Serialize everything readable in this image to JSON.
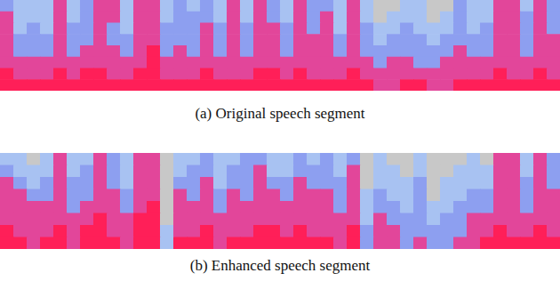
{
  "chart_data": [
    {
      "type": "heatmap",
      "title": "(a) Original speech segment",
      "tick_labels": false,
      "cells": [
        [
          2,
          1,
          1,
          1,
          3,
          1,
          2,
          3,
          3,
          1,
          3,
          3,
          1,
          2,
          1,
          2,
          1,
          3,
          1,
          3,
          2,
          1,
          3,
          2,
          2,
          1,
          3,
          1,
          0,
          0,
          1,
          1,
          0,
          0,
          2,
          1,
          1,
          3,
          3,
          1,
          3,
          2
        ],
        [
          3,
          1,
          1,
          1,
          3,
          1,
          2,
          3,
          3,
          1,
          3,
          3,
          1,
          2,
          2,
          2,
          1,
          3,
          1,
          3,
          2,
          1,
          3,
          2,
          3,
          1,
          3,
          1,
          0,
          1,
          1,
          1,
          0,
          1,
          2,
          1,
          1,
          3,
          3,
          2,
          3,
          2
        ],
        [
          3,
          1,
          2,
          1,
          3,
          2,
          2,
          3,
          2,
          1,
          3,
          3,
          2,
          2,
          2,
          3,
          2,
          3,
          2,
          3,
          3,
          2,
          3,
          2,
          3,
          1,
          3,
          2,
          1,
          1,
          2,
          1,
          1,
          1,
          2,
          1,
          2,
          3,
          3,
          2,
          3,
          2
        ],
        [
          3,
          2,
          2,
          2,
          3,
          2,
          2,
          3,
          2,
          2,
          3,
          3,
          2,
          2,
          2,
          3,
          2,
          3,
          2,
          3,
          3,
          2,
          3,
          3,
          3,
          2,
          3,
          2,
          1,
          2,
          2,
          2,
          1,
          2,
          2,
          2,
          2,
          3,
          3,
          2,
          3,
          3
        ],
        [
          3,
          2,
          2,
          2,
          3,
          2,
          3,
          3,
          3,
          2,
          3,
          4,
          2,
          3,
          2,
          3,
          2,
          3,
          2,
          3,
          3,
          2,
          3,
          3,
          3,
          2,
          3,
          2,
          2,
          2,
          2,
          2,
          2,
          2,
          3,
          2,
          2,
          3,
          3,
          2,
          3,
          3
        ],
        [
          3,
          3,
          3,
          3,
          3,
          3,
          3,
          3,
          3,
          3,
          3,
          4,
          3,
          3,
          3,
          3,
          3,
          3,
          3,
          3,
          3,
          3,
          3,
          3,
          3,
          3,
          3,
          3,
          2,
          3,
          3,
          2,
          2,
          3,
          3,
          3,
          3,
          3,
          3,
          3,
          3,
          3
        ],
        [
          4,
          3,
          3,
          3,
          4,
          3,
          4,
          4,
          3,
          3,
          4,
          4,
          3,
          3,
          3,
          4,
          3,
          3,
          3,
          4,
          4,
          3,
          4,
          3,
          3,
          3,
          4,
          3,
          3,
          3,
          3,
          3,
          3,
          3,
          3,
          3,
          3,
          4,
          3,
          3,
          4,
          3
        ],
        [
          4,
          4,
          4,
          4,
          4,
          4,
          4,
          4,
          4,
          4,
          4,
          4,
          4,
          4,
          4,
          4,
          4,
          4,
          4,
          4,
          4,
          4,
          4,
          4,
          4,
          4,
          4,
          4,
          3,
          3,
          4,
          4,
          3,
          3,
          4,
          4,
          4,
          4,
          4,
          4,
          4,
          4
        ]
      ]
    },
    {
      "type": "heatmap",
      "title": "(b) Enhanced speech segment",
      "tick_labels": false,
      "cells": [
        [
          1,
          1,
          0,
          1,
          3,
          1,
          1,
          3,
          2,
          1,
          3,
          3,
          0,
          1,
          1,
          2,
          1,
          1,
          2,
          2,
          1,
          1,
          2,
          1,
          2,
          1,
          2,
          0,
          1,
          0,
          0,
          1,
          0,
          0,
          0,
          1,
          0,
          3,
          3,
          1,
          3,
          2
        ],
        [
          2,
          1,
          1,
          1,
          3,
          1,
          2,
          3,
          2,
          1,
          3,
          3,
          0,
          1,
          2,
          2,
          1,
          2,
          2,
          3,
          1,
          1,
          2,
          2,
          2,
          1,
          3,
          0,
          1,
          1,
          0,
          1,
          0,
          0,
          1,
          1,
          1,
          3,
          3,
          1,
          3,
          2
        ],
        [
          3,
          2,
          1,
          2,
          3,
          2,
          2,
          3,
          2,
          1,
          3,
          3,
          0,
          2,
          2,
          3,
          1,
          2,
          2,
          3,
          2,
          2,
          3,
          2,
          2,
          2,
          3,
          0,
          1,
          1,
          1,
          2,
          0,
          1,
          1,
          1,
          1,
          3,
          3,
          2,
          3,
          2
        ],
        [
          3,
          3,
          2,
          2,
          3,
          2,
          2,
          3,
          3,
          2,
          3,
          3,
          0,
          3,
          2,
          3,
          2,
          3,
          2,
          3,
          3,
          2,
          3,
          3,
          3,
          2,
          3,
          1,
          2,
          1,
          1,
          2,
          0,
          1,
          1,
          2,
          2,
          3,
          3,
          2,
          3,
          3
        ],
        [
          3,
          3,
          3,
          3,
          3,
          2,
          3,
          3,
          3,
          2,
          3,
          4,
          0,
          3,
          3,
          3,
          2,
          3,
          3,
          3,
          3,
          3,
          3,
          3,
          3,
          2,
          3,
          1,
          2,
          2,
          1,
          2,
          1,
          1,
          2,
          2,
          2,
          3,
          3,
          2,
          3,
          3
        ],
        [
          3,
          3,
          3,
          3,
          3,
          3,
          3,
          4,
          3,
          3,
          4,
          4,
          0,
          3,
          3,
          3,
          3,
          3,
          3,
          3,
          3,
          3,
          3,
          3,
          3,
          3,
          3,
          1,
          3,
          2,
          2,
          2,
          1,
          2,
          2,
          3,
          3,
          3,
          3,
          3,
          3,
          3
        ],
        [
          4,
          3,
          3,
          3,
          4,
          3,
          4,
          4,
          3,
          3,
          4,
          4,
          1,
          3,
          3,
          4,
          3,
          3,
          3,
          4,
          4,
          3,
          4,
          3,
          3,
          3,
          4,
          2,
          3,
          3,
          2,
          2,
          2,
          2,
          2,
          3,
          3,
          4,
          3,
          3,
          4,
          3
        ],
        [
          4,
          4,
          3,
          4,
          4,
          3,
          4,
          4,
          4,
          3,
          4,
          4,
          1,
          4,
          4,
          4,
          3,
          4,
          4,
          4,
          4,
          4,
          4,
          4,
          4,
          3,
          4,
          2,
          3,
          3,
          2,
          3,
          2,
          2,
          3,
          3,
          4,
          4,
          4,
          4,
          4,
          4
        ]
      ]
    }
  ]
}
